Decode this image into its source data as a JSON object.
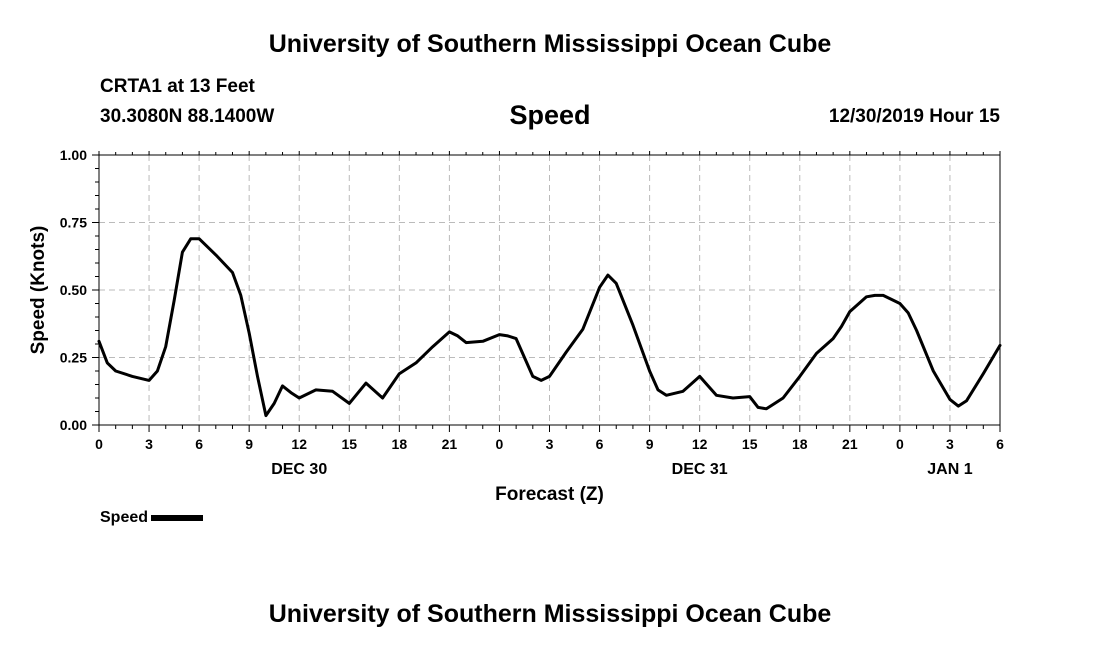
{
  "header": {
    "title": "University of Southern Mississippi Ocean Cube",
    "station": "CRTA1 at 13 Feet",
    "coords": "30.3080N 88.1400W",
    "parameter": "Speed",
    "datetime": "12/30/2019 Hour 15"
  },
  "footer": {
    "title": "University of Southern Mississippi Ocean Cube"
  },
  "legend": {
    "label": "Speed",
    "color": "#000000"
  },
  "chart_data": {
    "type": "line",
    "title": "Speed",
    "xlabel": "Forecast (Z)",
    "ylabel": "Speed (Knots)",
    "xlim": [
      0,
      54
    ],
    "ylim": [
      0,
      1
    ],
    "grid": true,
    "ytick_values": [
      0,
      0.25,
      0.5,
      0.75,
      1.0
    ],
    "ytick_labels": [
      "0.00",
      "0.25",
      "0.50",
      "0.75",
      "1.00"
    ],
    "xtick_values": [
      0,
      3,
      6,
      9,
      12,
      15,
      18,
      21,
      24,
      27,
      30,
      33,
      36,
      39,
      42,
      45,
      48,
      51,
      54
    ],
    "xtick_labels": [
      "0",
      "3",
      "6",
      "9",
      "12",
      "15",
      "18",
      "21",
      "0",
      "3",
      "6",
      "9",
      "12",
      "15",
      "18",
      "21",
      "0",
      "3",
      "6"
    ],
    "date_labels": [
      {
        "x": 12,
        "label": "DEC 30"
      },
      {
        "x": 36,
        "label": "DEC 31"
      },
      {
        "x": 51,
        "label": "JAN 1"
      }
    ],
    "series": [
      {
        "name": "Speed",
        "color": "#000000",
        "x": [
          0,
          0.5,
          1,
          2,
          3,
          3.5,
          4,
          4.5,
          5,
          5.5,
          6,
          7,
          8,
          8.5,
          9,
          9.5,
          10,
          10.5,
          11,
          11.5,
          12,
          13,
          14,
          15,
          16,
          17,
          18,
          19,
          20,
          21,
          21.5,
          22,
          23,
          24,
          24.5,
          25,
          26,
          26.5,
          27,
          28,
          29,
          30,
          30.5,
          31,
          32,
          33,
          33.5,
          34,
          35,
          36,
          37,
          38,
          39,
          39.5,
          40,
          40.5,
          41,
          42,
          43,
          44,
          44.5,
          45,
          46,
          46.5,
          47,
          48,
          48.5,
          49,
          50,
          51,
          51.5,
          52,
          53,
          54
        ],
        "y": [
          0.31,
          0.23,
          0.2,
          0.18,
          0.165,
          0.2,
          0.29,
          0.46,
          0.64,
          0.69,
          0.69,
          0.63,
          0.565,
          0.48,
          0.34,
          0.18,
          0.035,
          0.08,
          0.145,
          0.12,
          0.1,
          0.13,
          0.125,
          0.08,
          0.155,
          0.1,
          0.19,
          0.23,
          0.29,
          0.345,
          0.33,
          0.305,
          0.31,
          0.335,
          0.33,
          0.32,
          0.18,
          0.165,
          0.18,
          0.27,
          0.355,
          0.51,
          0.555,
          0.525,
          0.37,
          0.2,
          0.13,
          0.11,
          0.125,
          0.18,
          0.11,
          0.1,
          0.105,
          0.065,
          0.06,
          0.08,
          0.1,
          0.18,
          0.265,
          0.32,
          0.365,
          0.42,
          0.475,
          0.48,
          0.48,
          0.45,
          0.415,
          0.35,
          0.2,
          0.095,
          0.07,
          0.09,
          0.19,
          0.295
        ]
      }
    ]
  }
}
